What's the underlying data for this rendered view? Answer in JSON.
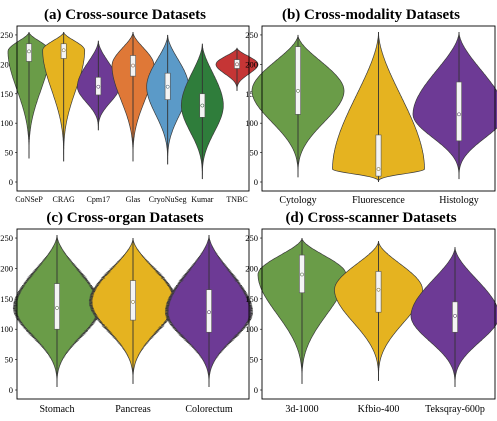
{
  "figure": {
    "panels": [
      {
        "id": "a",
        "title": "(a) Cross-source Datasets"
      },
      {
        "id": "b",
        "title": "(b) Cross-modality Datasets"
      },
      {
        "id": "c",
        "title": "(c) Cross-organ Datasets"
      },
      {
        "id": "d",
        "title": "(d) Cross-scanner Datasets"
      }
    ]
  },
  "chart_data": [
    {
      "type": "violin",
      "title": "(a) Cross-source Datasets",
      "ylim": [
        0,
        255
      ],
      "yticks": [
        0,
        50,
        100,
        150,
        200,
        250
      ],
      "categories": [
        "CoNSeP",
        "CRAG",
        "Cpm17",
        "Glas",
        "CryoNuSeg",
        "Kumar",
        "TNBC"
      ],
      "colors": [
        "#6a9c48",
        "#e5b320",
        "#6d3a95",
        "#df7837",
        "#5b9ac8",
        "#2f7d3b",
        "#c53535"
      ],
      "series": [
        {
          "min": 40,
          "max": 255,
          "q1": 205,
          "median": 222,
          "q3": 235
        },
        {
          "min": 35,
          "max": 255,
          "q1": 210,
          "median": 224,
          "q3": 235
        },
        {
          "min": 88,
          "max": 240,
          "q1": 148,
          "median": 162,
          "q3": 178
        },
        {
          "min": 35,
          "max": 255,
          "q1": 180,
          "median": 198,
          "q3": 215
        },
        {
          "min": 30,
          "max": 250,
          "q1": 140,
          "median": 162,
          "q3": 185
        },
        {
          "min": 5,
          "max": 235,
          "q1": 110,
          "median": 130,
          "q3": 150
        },
        {
          "min": 155,
          "max": 228,
          "q1": 193,
          "median": 200,
          "q3": 208
        }
      ]
    },
    {
      "type": "violin",
      "title": "(b) Cross-modality Datasets",
      "ylim": [
        0,
        255
      ],
      "yticks": [
        0,
        50,
        100,
        150,
        200,
        250
      ],
      "categories": [
        "Cytology",
        "Fluorescence",
        "Histology"
      ],
      "colors": [
        "#6a9c48",
        "#e5b320",
        "#6d3a95"
      ],
      "series": [
        {
          "min": 8,
          "max": 250,
          "q1": 115,
          "median": 155,
          "q3": 230
        },
        {
          "min": 0,
          "max": 255,
          "q1": 10,
          "median": 22,
          "q3": 80
        },
        {
          "min": 5,
          "max": 255,
          "q1": 70,
          "median": 115,
          "q3": 170
        }
      ]
    },
    {
      "type": "violin",
      "title": "(c) Cross-organ Datasets",
      "ylim": [
        0,
        255
      ],
      "yticks": [
        0,
        50,
        100,
        150,
        200,
        250
      ],
      "categories": [
        "Stomach",
        "Pancreas",
        "Colorectum"
      ],
      "colors": [
        "#6a9c48",
        "#e5b320",
        "#6d3a95"
      ],
      "series": [
        {
          "min": 5,
          "max": 255,
          "q1": 100,
          "median": 135,
          "q3": 175
        },
        {
          "min": 10,
          "max": 250,
          "q1": 115,
          "median": 145,
          "q3": 180
        },
        {
          "min": 5,
          "max": 255,
          "q1": 95,
          "median": 128,
          "q3": 165
        }
      ]
    },
    {
      "type": "violin",
      "title": "(d) Cross-scanner Datasets",
      "ylim": [
        0,
        255
      ],
      "yticks": [
        0,
        50,
        100,
        150,
        200,
        250
      ],
      "categories": [
        "3d-1000",
        "Kfbio-400",
        "Teksqray-600p"
      ],
      "colors": [
        "#6a9c48",
        "#e5b320",
        "#6d3a95"
      ],
      "series": [
        {
          "min": 10,
          "max": 250,
          "q1": 160,
          "median": 190,
          "q3": 222
        },
        {
          "min": 15,
          "max": 245,
          "q1": 128,
          "median": 165,
          "q3": 195
        },
        {
          "min": 5,
          "max": 235,
          "q1": 95,
          "median": 122,
          "q3": 145
        }
      ]
    }
  ]
}
